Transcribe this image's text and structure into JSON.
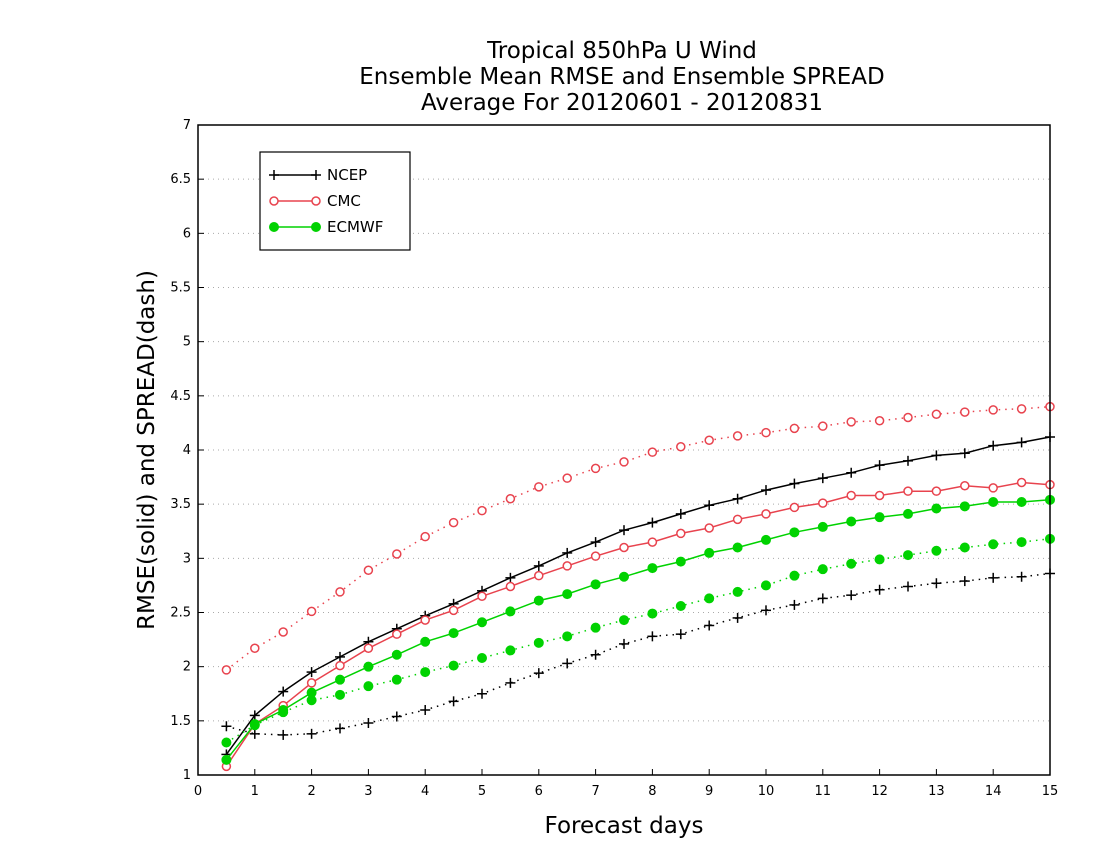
{
  "chart_data": {
    "type": "line",
    "title": [
      "Tropical 850hPa U Wind",
      "Ensemble Mean RMSE and Ensemble SPREAD",
      "Average For 20120601 - 20120831"
    ],
    "xlabel": "Forecast days",
    "ylabel": "RMSE(solid) and SPREAD(dash)",
    "xlim": [
      0,
      15
    ],
    "ylim": [
      1,
      7
    ],
    "xticks": [
      0,
      1,
      2,
      3,
      4,
      5,
      6,
      7,
      8,
      9,
      10,
      11,
      12,
      13,
      14,
      15
    ],
    "yticks": [
      1,
      1.5,
      2,
      2.5,
      3,
      3.5,
      4,
      4.5,
      5,
      5.5,
      6,
      6.5,
      7
    ],
    "grid": "dotted",
    "legend_placement": "top-left",
    "x": [
      0.5,
      1,
      1.5,
      2,
      2.5,
      3,
      3.5,
      4,
      4.5,
      5,
      5.5,
      6,
      6.5,
      7,
      7.5,
      8,
      8.5,
      9,
      9.5,
      10,
      10.5,
      11,
      11.5,
      12,
      12.5,
      13,
      13.5,
      14,
      14.5,
      15
    ],
    "series": [
      {
        "name": "NCEP",
        "metric": "RMSE",
        "style": "solid",
        "marker": "plus",
        "color": "#000000",
        "values": [
          1.19,
          1.55,
          1.77,
          1.95,
          2.09,
          2.23,
          2.35,
          2.47,
          2.58,
          2.7,
          2.82,
          2.93,
          3.05,
          3.15,
          3.26,
          3.33,
          3.41,
          3.49,
          3.55,
          3.63,
          3.69,
          3.74,
          3.79,
          3.86,
          3.9,
          3.95,
          3.97,
          4.04,
          4.07,
          4.12
        ]
      },
      {
        "name": "NCEP",
        "metric": "SPREAD",
        "style": "dash",
        "marker": "plus",
        "color": "#000000",
        "values": [
          1.45,
          1.38,
          1.37,
          1.38,
          1.43,
          1.48,
          1.54,
          1.6,
          1.68,
          1.75,
          1.85,
          1.94,
          2.03,
          2.11,
          2.21,
          2.28,
          2.3,
          2.38,
          2.45,
          2.52,
          2.57,
          2.63,
          2.66,
          2.71,
          2.74,
          2.77,
          2.79,
          2.82,
          2.83,
          2.86
        ]
      },
      {
        "name": "CMC",
        "metric": "RMSE",
        "style": "solid",
        "marker": "open-circle",
        "color": "#e8434e",
        "values": [
          1.08,
          1.47,
          1.64,
          1.85,
          2.01,
          2.17,
          2.3,
          2.43,
          2.52,
          2.65,
          2.74,
          2.84,
          2.93,
          3.02,
          3.1,
          3.15,
          3.23,
          3.28,
          3.36,
          3.41,
          3.47,
          3.51,
          3.58,
          3.58,
          3.62,
          3.62,
          3.67,
          3.65,
          3.7,
          3.68
        ]
      },
      {
        "name": "CMC",
        "metric": "SPREAD",
        "style": "dash",
        "marker": "open-circle",
        "color": "#e8434e",
        "values": [
          1.97,
          2.17,
          2.32,
          2.51,
          2.69,
          2.89,
          3.04,
          3.2,
          3.33,
          3.44,
          3.55,
          3.66,
          3.74,
          3.83,
          3.89,
          3.98,
          4.03,
          4.09,
          4.13,
          4.16,
          4.2,
          4.22,
          4.26,
          4.27,
          4.3,
          4.33,
          4.35,
          4.37,
          4.38,
          4.4
        ]
      },
      {
        "name": "ECMWF",
        "metric": "RMSE",
        "style": "solid",
        "marker": "filled-circle",
        "color": "#00d200",
        "values": [
          1.14,
          1.47,
          1.6,
          1.76,
          1.88,
          2.0,
          2.11,
          2.23,
          2.31,
          2.41,
          2.51,
          2.61,
          2.67,
          2.76,
          2.83,
          2.91,
          2.97,
          3.05,
          3.1,
          3.17,
          3.24,
          3.29,
          3.34,
          3.38,
          3.41,
          3.46,
          3.48,
          3.52,
          3.52,
          3.54
        ]
      },
      {
        "name": "ECMWF",
        "metric": "SPREAD",
        "style": "dash",
        "marker": "filled-circle",
        "color": "#00d200",
        "values": [
          1.3,
          1.46,
          1.58,
          1.69,
          1.74,
          1.82,
          1.88,
          1.95,
          2.01,
          2.08,
          2.15,
          2.22,
          2.28,
          2.36,
          2.43,
          2.49,
          2.56,
          2.63,
          2.69,
          2.75,
          2.84,
          2.9,
          2.95,
          2.99,
          3.03,
          3.07,
          3.1,
          3.13,
          3.15,
          3.18
        ]
      }
    ],
    "legend": [
      {
        "name": "NCEP",
        "marker": "plus",
        "color": "#000000"
      },
      {
        "name": "CMC",
        "marker": "open-circle",
        "color": "#e8434e"
      },
      {
        "name": "ECMWF",
        "marker": "filled-circle",
        "color": "#00d200"
      }
    ]
  }
}
